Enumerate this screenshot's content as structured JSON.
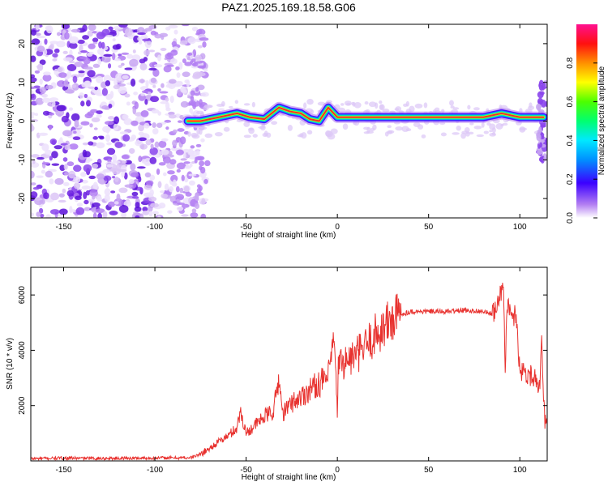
{
  "title": "PAZ1.2025.169.18.58.G06",
  "colors": {
    "snr_line": "#e8322f",
    "ridge": "#e8322f",
    "background": "#ffffff",
    "axis": "#000000",
    "speckle_light": "#d9c2f5",
    "speckle_dark": "#6a1de0"
  },
  "chart_data": [
    {
      "type": "heatmap",
      "title": "",
      "xlabel": "Height of straight line (km)",
      "ylabel": "Frequency (Hz)",
      "xlim": [
        -168,
        115
      ],
      "ylim": [
        -25,
        25
      ],
      "xticks": [
        -150,
        -100,
        -50,
        0,
        50,
        100
      ],
      "yticks": [
        -20,
        -10,
        0,
        10,
        20
      ],
      "colorbar": {
        "label": "Normalized spectral amplitude",
        "range": [
          0.0,
          1.0
        ],
        "ticks": [
          0.0,
          0.2,
          0.4,
          0.6,
          0.8
        ],
        "tick_labels": [
          "0.0",
          "0.2",
          "0.4",
          "0.6",
          "0.8"
        ]
      },
      "ridge": {
        "x": [
          -82,
          -75,
          -65,
          -55,
          -48,
          -40,
          -32,
          -26,
          -20,
          -15,
          -10,
          -5,
          0,
          10,
          30,
          50,
          70,
          80,
          90,
          100,
          108,
          113
        ],
        "y": [
          0,
          0,
          1,
          2,
          1,
          0.5,
          3.5,
          2.5,
          2,
          0.5,
          0,
          3.5,
          1,
          1,
          1,
          1,
          1,
          1,
          2,
          1,
          1,
          1
        ]
      }
    },
    {
      "type": "line",
      "title": "",
      "xlabel": "Height of straight line (km)",
      "ylabel": "SNR (10 * v/v)",
      "xlim": [
        -168,
        115
      ],
      "ylim": [
        0,
        7000
      ],
      "xticks": [
        -150,
        -100,
        -50,
        0,
        50,
        100
      ],
      "yticks": [
        2000,
        4000,
        6000
      ],
      "series": [
        {
          "x": [
            -168,
            -150,
            -130,
            -110,
            -90,
            -80,
            -75,
            -70,
            -65,
            -60,
            -55,
            -53,
            -50,
            -45,
            -40,
            -35,
            -32,
            -30,
            -25,
            -20,
            -15,
            -10,
            -5,
            -2,
            0,
            0.5,
            5,
            10,
            15,
            20,
            25,
            30,
            35,
            40,
            50,
            60,
            70,
            80,
            85,
            88,
            91,
            92,
            93,
            95,
            98,
            100,
            103,
            106,
            109,
            111,
            112,
            113,
            114,
            115
          ],
          "y": [
            80,
            100,
            90,
            100,
            110,
            120,
            250,
            450,
            700,
            900,
            1200,
            1800,
            1000,
            1300,
            1600,
            1800,
            3000,
            1700,
            2100,
            2300,
            2600,
            2800,
            3000,
            4400,
            1800,
            3500,
            3600,
            3800,
            4100,
            4500,
            4800,
            5100,
            5300,
            5400,
            5400,
            5400,
            5450,
            5400,
            5300,
            5600,
            6600,
            2900,
            5800,
            5200,
            5300,
            3300,
            3200,
            3100,
            3000,
            2700,
            4200,
            2000,
            1400,
            1300
          ]
        }
      ]
    }
  ]
}
